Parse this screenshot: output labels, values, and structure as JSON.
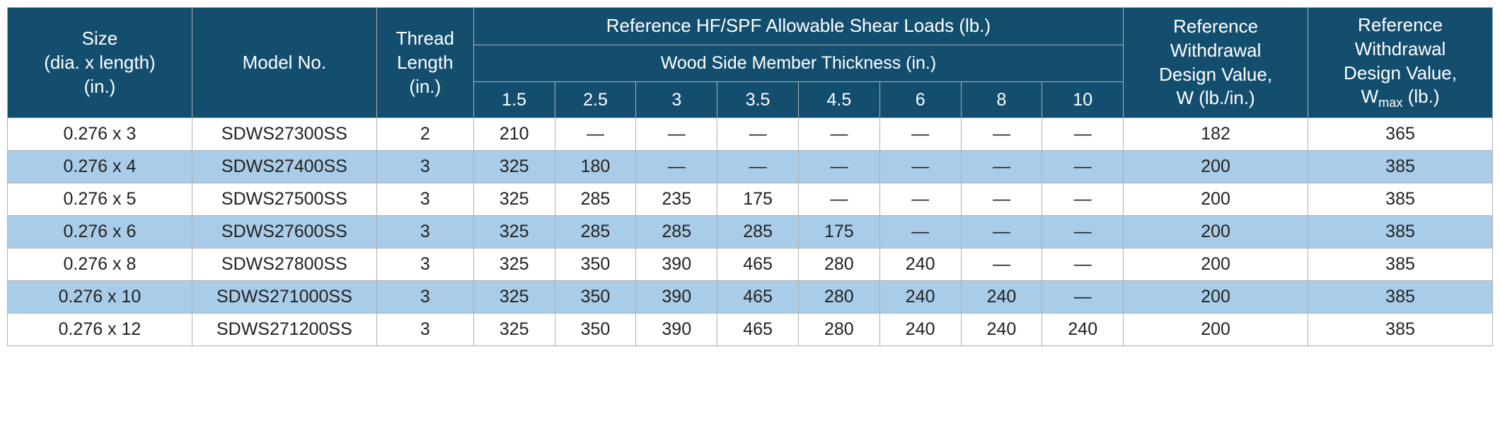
{
  "colors": {
    "header_bg": "#134e6f",
    "header_text": "#ffffff",
    "stripe_bg": "#a9cce8",
    "border": "#b0b0b0",
    "cell_text": "#222222",
    "bg": "#ffffff"
  },
  "headers": {
    "size": "Size\n(dia. x length)\n(in.)",
    "model": "Model No.",
    "thread": "Thread\nLength\n(in.)",
    "shear_top": "Reference HF/SPF Allowable Shear Loads (lb.)",
    "shear_mid": "Wood Side Member Thickness (in.)",
    "shear_cols": [
      "1.5",
      "2.5",
      "3",
      "3.5",
      "4.5",
      "6",
      "8",
      "10"
    ],
    "wd1_lines": [
      "Reference",
      "Withdrawal",
      "Design Value,",
      "W (lb./in.)"
    ],
    "wd2_lines": [
      "Reference",
      "Withdrawal",
      "Design Value,"
    ],
    "wd2_last_prefix": "W",
    "wd2_last_sub": "max",
    "wd2_last_suffix": " (lb.)"
  },
  "dash": "—",
  "rows": [
    {
      "size": "0.276 x 3",
      "model": "SDWS27300SS",
      "thread": "2",
      "vals": [
        "210",
        "—",
        "—",
        "—",
        "—",
        "—",
        "—",
        "—"
      ],
      "w": "182",
      "wmax": "365"
    },
    {
      "size": "0.276 x 4",
      "model": "SDWS27400SS",
      "thread": "3",
      "vals": [
        "325",
        "180",
        "—",
        "—",
        "—",
        "—",
        "—",
        "—"
      ],
      "w": "200",
      "wmax": "385"
    },
    {
      "size": "0.276 x 5",
      "model": "SDWS27500SS",
      "thread": "3",
      "vals": [
        "325",
        "285",
        "235",
        "175",
        "—",
        "—",
        "—",
        "—"
      ],
      "w": "200",
      "wmax": "385"
    },
    {
      "size": "0.276 x 6",
      "model": "SDWS27600SS",
      "thread": "3",
      "vals": [
        "325",
        "285",
        "285",
        "285",
        "175",
        "—",
        "—",
        "—"
      ],
      "w": "200",
      "wmax": "385"
    },
    {
      "size": "0.276 x 8",
      "model": "SDWS27800SS",
      "thread": "3",
      "vals": [
        "325",
        "350",
        "390",
        "465",
        "280",
        "240",
        "—",
        "—"
      ],
      "w": "200",
      "wmax": "385"
    },
    {
      "size": "0.276 x 10",
      "model": "SDWS271000SS",
      "thread": "3",
      "vals": [
        "325",
        "350",
        "390",
        "465",
        "280",
        "240",
        "240",
        "—"
      ],
      "w": "200",
      "wmax": "385"
    },
    {
      "size": "0.276 x 12",
      "model": "SDWS271200SS",
      "thread": "3",
      "vals": [
        "325",
        "350",
        "390",
        "465",
        "280",
        "240",
        "240",
        "240"
      ],
      "w": "200",
      "wmax": "385"
    }
  ]
}
